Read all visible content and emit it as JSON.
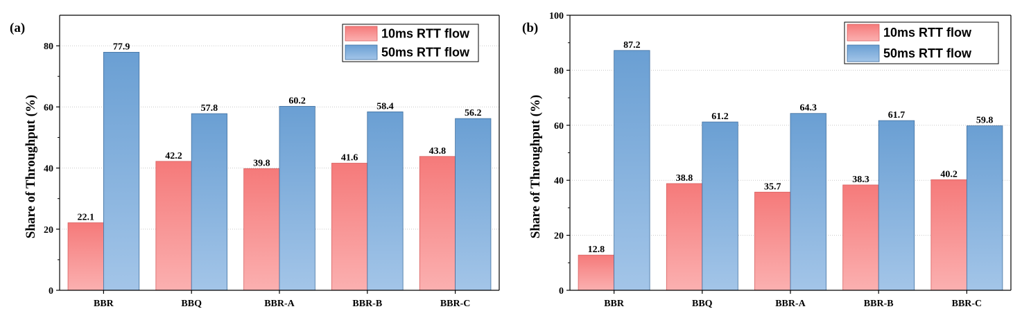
{
  "colors": {
    "series1_top": "#f57a7a",
    "series1_bottom": "#fbb0b0",
    "series1_edge": "#d86060",
    "series2_top": "#6a9fd3",
    "series2_bottom": "#a3c5e8",
    "series2_edge": "#3f6f9f"
  },
  "chart_data": [
    {
      "type": "bar",
      "panel_label": "(a)",
      "categories": [
        "BBR",
        "BBQ",
        "BBR-A",
        "BBR-B",
        "BBR-C"
      ],
      "series": [
        {
          "name": "10ms RTT flow",
          "values": [
            22.1,
            42.2,
            39.8,
            41.6,
            43.8
          ],
          "labels": [
            "22.1",
            "42.2",
            "39.8",
            "41.6",
            "43.8"
          ]
        },
        {
          "name": "50ms RTT flow",
          "values": [
            77.9,
            57.8,
            60.2,
            58.4,
            56.2
          ],
          "labels": [
            "77.9",
            "57.8",
            "60.2",
            "58.4",
            "56.2"
          ]
        }
      ],
      "ylabel": "Share of  Throughput (%)",
      "ylim": [
        0,
        90
      ],
      "yticks": [
        "0",
        "20",
        "40",
        "60",
        "80"
      ],
      "legend": "top-right",
      "grid": true
    },
    {
      "type": "bar",
      "panel_label": "(b)",
      "categories": [
        "BBR",
        "BBQ",
        "BBR-A",
        "BBR-B",
        "BBR-C"
      ],
      "series": [
        {
          "name": "10ms RTT flow",
          "values": [
            12.8,
            38.8,
            35.7,
            38.3,
            40.2
          ],
          "labels": [
            "12.8",
            "38.8",
            "35.7",
            "38.3",
            "40.2"
          ]
        },
        {
          "name": "50ms RTT flow",
          "values": [
            87.2,
            61.2,
            64.3,
            61.7,
            59.8
          ],
          "labels": [
            "87.2",
            "61.2",
            "64.3",
            "61.7",
            "59.8"
          ]
        }
      ],
      "ylabel": "Share of  Throughput (%)",
      "ylim": [
        0,
        100
      ],
      "yticks": [
        "0",
        "20",
        "40",
        "60",
        "80",
        "100"
      ],
      "legend": "top-right",
      "grid": true
    }
  ]
}
